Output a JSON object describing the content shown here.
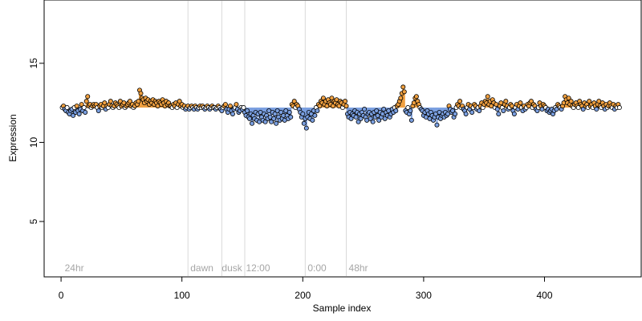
{
  "chart_data": {
    "type": "scatter",
    "title": "",
    "xlabel": "Sample index",
    "ylabel": "Expression",
    "xlim": [
      -14,
      480
    ],
    "ylim": [
      1.5,
      19
    ],
    "x_ticks": [
      0,
      100,
      200,
      300,
      400
    ],
    "y_ticks": [
      5,
      10,
      15
    ],
    "grid": false,
    "colors": {
      "above_fill": "#f0a040",
      "below_fill": "#7a9fe0",
      "point_stroke": "#000000",
      "vline": "#d9d9d9",
      "annotation": "#a6a6a6",
      "baseline": 12.2
    },
    "vlines": [
      105,
      133,
      152,
      202,
      236
    ],
    "annotations": [
      {
        "text": "24hr",
        "x": 3
      },
      {
        "text": "dawn",
        "x": 107
      },
      {
        "text": "dusk",
        "x": 133
      },
      {
        "text": "12:00",
        "x": 153
      },
      {
        "text": "0:00",
        "x": 204
      },
      {
        "text": "48hr",
        "x": 238
      }
    ],
    "series": [
      {
        "segments": [
          {
            "x0": 1,
            "x1": 20,
            "values": [
              12.2,
              12.3,
              12.1,
              12.0,
              12.2,
              11.9,
              11.8,
              12.0,
              12.1,
              11.7,
              12.2,
              11.9,
              12.3,
              12.0,
              11.8,
              12.1,
              12.4,
              12.0,
              12.2,
              11.9
            ]
          },
          {
            "x0": 21,
            "x1": 64,
            "values": [
              12.6,
              12.9,
              12.3,
              12.4,
              12.2,
              12.3,
              12.4,
              12.3,
              12.4,
              12.2,
              12.0,
              12.3,
              12.4,
              12.2,
              12.3,
              12.5,
              12.1,
              12.3,
              12.2,
              12.4,
              12.6,
              12.3,
              12.2,
              12.3,
              12.5,
              12.4,
              12.3,
              12.2,
              12.6,
              12.3,
              12.4,
              12.5,
              12.2,
              12.3,
              12.4,
              12.5,
              12.6,
              12.3,
              12.4,
              12.2,
              12.3,
              12.5,
              12.4,
              12.6
            ]
          },
          {
            "x0": 65,
            "x1": 90,
            "values": [
              13.3,
              13.1,
              12.8,
              12.7,
              12.5,
              12.8,
              12.6,
              12.7,
              12.4,
              12.6,
              12.5,
              12.7,
              12.4,
              12.6,
              12.5,
              12.3,
              12.6,
              12.5,
              12.4,
              12.7,
              12.5,
              12.3,
              12.6,
              12.4,
              12.5,
              12.3
            ]
          },
          {
            "x0": 91,
            "x1": 150,
            "values": [
              12.3,
              12.2,
              12.4,
              12.3,
              12.5,
              12.2,
              12.4,
              12.6,
              12.3,
              12.4,
              12.2,
              12.3,
              12.1,
              12.2,
              12.3,
              12.1,
              12.2,
              12.3,
              12.2,
              12.1,
              12.3,
              12.2,
              12.1,
              12.2,
              12.3,
              12.2,
              12.3,
              12.2,
              12.1,
              12.2,
              12.3,
              12.2,
              12.1,
              12.2,
              12.3,
              12.2,
              12.2,
              12.1,
              12.2,
              12.3,
              12.2,
              12.1,
              12.0,
              12.2,
              12.3,
              12.4,
              12.1,
              11.9,
              12.1,
              12.3,
              12.0,
              11.8,
              12.1,
              12.2,
              12.4,
              12.1,
              11.9,
              12.0,
              12.2,
              12.1
            ]
          },
          {
            "x0": 151,
            "x1": 190,
            "values": [
              12.2,
              11.9,
              11.7,
              12.0,
              11.6,
              11.5,
              11.8,
              11.2,
              11.7,
              11.5,
              11.9,
              11.4,
              11.8,
              11.3,
              11.9,
              11.6,
              11.4,
              11.8,
              11.3,
              11.7,
              11.5,
              12.0,
              11.6,
              11.3,
              11.9,
              11.5,
              11.8,
              11.2,
              12.0,
              11.6,
              11.4,
              11.9,
              11.5,
              11.7,
              11.4,
              12.0,
              11.7,
              11.5,
              11.9,
              11.6
            ]
          },
          {
            "x0": 191,
            "x1": 210,
            "values": [
              12.4,
              12.3,
              12.6,
              12.2,
              12.4,
              12.3,
              12.1,
              11.9,
              11.6,
              11.8,
              11.2,
              11.5,
              10.9,
              11.6,
              11.9,
              11.5,
              11.8,
              11.4,
              12.0,
              11.7
            ]
          },
          {
            "x0": 211,
            "x1": 236,
            "values": [
              12.2,
              12.0,
              12.4,
              12.3,
              12.6,
              12.5,
              12.8,
              12.4,
              12.6,
              12.3,
              12.7,
              12.5,
              12.4,
              12.8,
              12.3,
              12.6,
              12.5,
              12.7,
              12.4,
              12.3,
              12.6,
              12.5,
              12.2,
              12.4,
              12.6,
              12.3
            ]
          },
          {
            "x0": 237,
            "x1": 278,
            "values": [
              11.8,
              11.6,
              11.9,
              11.5,
              11.8,
              11.7,
              12.0,
              11.6,
              11.9,
              11.3,
              11.8,
              11.5,
              11.9,
              11.7,
              12.1,
              11.6,
              11.4,
              11.8,
              11.9,
              11.5,
              11.8,
              11.3,
              11.9,
              11.6,
              12.0,
              11.7,
              11.4,
              11.9,
              11.6,
              11.8,
              12.1,
              11.5,
              11.9,
              11.7,
              12.0,
              11.6,
              11.8,
              12.1,
              11.9,
              12.2,
              12.0,
              12.3
            ]
          },
          {
            "x0": 279,
            "x1": 284,
            "values": [
              12.4,
              12.6,
              12.8,
              13.1,
              13.5,
              13.2
            ]
          },
          {
            "x0": 285,
            "x1": 299,
            "values": [
              12.0,
              11.9,
              12.2,
              11.8,
              12.0,
              11.4,
              12.3,
              12.5,
              12.8,
              12.9,
              12.6,
              12.4,
              12.2,
              12.1,
              12.0
            ]
          },
          {
            "x0": 300,
            "x1": 320,
            "values": [
              11.7,
              11.9,
              11.6,
              12.0,
              11.8,
              11.5,
              11.9,
              11.7,
              11.4,
              11.6,
              11.8,
              11.1,
              11.6,
              11.9,
              11.5,
              11.7,
              11.8,
              11.6,
              11.9,
              11.7,
              11.8
            ]
          },
          {
            "x0": 321,
            "x1": 350,
            "values": [
              12.3,
              12.1,
              11.9,
              12.0,
              11.6,
              11.8,
              12.2,
              12.4,
              12.3,
              12.6,
              12.2,
              12.3,
              12.1,
              12.0,
              11.8,
              12.2,
              12.4,
              12.1,
              12.3,
              11.9,
              12.2,
              12.4,
              12.3,
              12.1,
              12.2,
              12.0,
              12.3,
              12.5,
              12.2,
              12.4
            ]
          },
          {
            "x0": 351,
            "x1": 400,
            "values": [
              12.6,
              12.5,
              12.9,
              12.4,
              12.6,
              12.3,
              12.7,
              12.5,
              12.2,
              12.4,
              12.1,
              11.8,
              12.3,
              12.5,
              12.2,
              12.0,
              12.4,
              12.6,
              12.3,
              12.1,
              12.2,
              12.4,
              12.3,
              12.0,
              11.8,
              12.2,
              12.4,
              12.1,
              12.3,
              12.5,
              12.2,
              12.0,
              12.3,
              12.1,
              12.2,
              12.4,
              12.3,
              12.5,
              12.6,
              12.2,
              12.4,
              12.3,
              12.1,
              12.0,
              12.2,
              12.5,
              12.3,
              12.1,
              12.4,
              12.3
            ]
          },
          {
            "x0": 401,
            "x1": 462,
            "values": [
              12.2,
              12.0,
              12.1,
              11.9,
              12.0,
              12.1,
              11.8,
              12.0,
              12.2,
              12.1,
              12.4,
              12.3,
              12.2,
              12.1,
              12.3,
              12.5,
              12.9,
              12.7,
              12.5,
              12.8,
              12.4,
              12.6,
              12.3,
              12.2,
              12.4,
              12.5,
              12.3,
              12.2,
              12.6,
              12.4,
              12.3,
              12.1,
              12.5,
              12.3,
              12.4,
              12.2,
              12.6,
              12.3,
              12.4,
              12.2,
              12.5,
              12.3,
              12.1,
              12.4,
              12.6,
              12.3,
              12.2,
              12.5,
              12.3,
              12.1,
              12.4,
              12.2,
              12.3,
              12.5,
              12.3,
              12.2,
              12.4,
              12.1,
              12.3,
              12.2,
              12.4,
              12.2
            ]
          }
        ]
      }
    ]
  }
}
